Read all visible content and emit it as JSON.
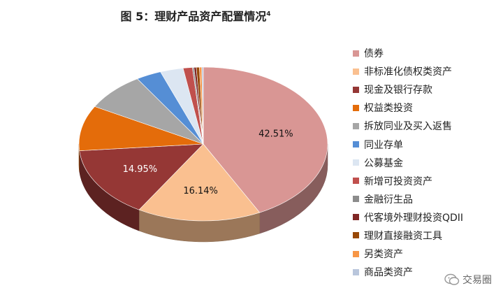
{
  "title": "图 5：理财产品资产配置情况",
  "title_note": "4",
  "watermark": "交易圈",
  "chart_data": {
    "type": "pie",
    "title": "图 5：理财产品资产配置情况",
    "legend_position": "right",
    "slices": [
      {
        "label": "债券",
        "value": 42.51,
        "color": "#d99694",
        "shown_label": "42.51%"
      },
      {
        "label": "非标准化债权类资产",
        "value": 16.14,
        "color": "#fac090",
        "shown_label": "16.14%"
      },
      {
        "label": "现金及银行存款",
        "value": 14.95,
        "color": "#953735",
        "shown_label": "14.95%"
      },
      {
        "label": "权益类投资",
        "value": 9.5,
        "color": "#e46c0a"
      },
      {
        "label": "拆放同业及买入返售",
        "value": 8.0,
        "color": "#a6a6a6"
      },
      {
        "label": "同业存单",
        "value": 3.3,
        "color": "#558ed5"
      },
      {
        "label": "公募基金",
        "value": 3.0,
        "color": "#dce6f2"
      },
      {
        "label": "新增可投资资产",
        "value": 1.2,
        "color": "#c0504d"
      },
      {
        "label": "金融衍生品",
        "value": 0.2,
        "color": "#8c8c8c"
      },
      {
        "label": "代客境外理财投资QDII",
        "value": 0.3,
        "color": "#7f2624"
      },
      {
        "label": "理财直接融资工具",
        "value": 0.4,
        "color": "#984807"
      },
      {
        "label": "另类资产",
        "value": 0.3,
        "color": "#f79646"
      },
      {
        "label": "商品类资产",
        "value": 0.2,
        "color": "#b9c6dc"
      }
    ]
  }
}
